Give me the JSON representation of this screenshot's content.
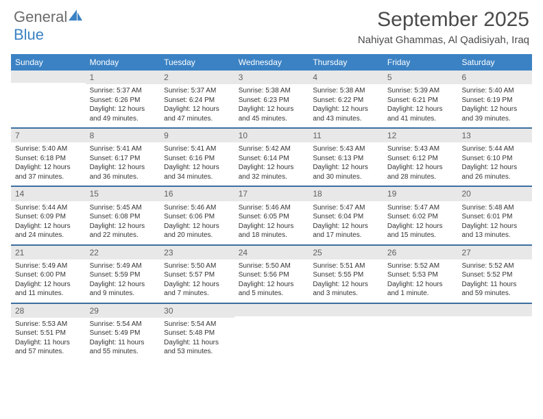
{
  "logo": {
    "main": "General",
    "sub": "Blue",
    "icon_color": "#3b82c4"
  },
  "header": {
    "title": "September 2025",
    "location": "Nahiyat Ghammas, Al Qadisiyah, Iraq"
  },
  "colors": {
    "header_bg": "#3b82c4",
    "row_divider": "#3b6ea0",
    "daynum_bg": "#e8e8e8",
    "text": "#333333",
    "header_text": "#ffffff"
  },
  "weekdays": [
    "Sunday",
    "Monday",
    "Tuesday",
    "Wednesday",
    "Thursday",
    "Friday",
    "Saturday"
  ],
  "weeks": [
    [
      {
        "blank": true
      },
      {
        "day": "1",
        "sunrise": "Sunrise: 5:37 AM",
        "sunset": "Sunset: 6:26 PM",
        "daylight1": "Daylight: 12 hours",
        "daylight2": "and 49 minutes."
      },
      {
        "day": "2",
        "sunrise": "Sunrise: 5:37 AM",
        "sunset": "Sunset: 6:24 PM",
        "daylight1": "Daylight: 12 hours",
        "daylight2": "and 47 minutes."
      },
      {
        "day": "3",
        "sunrise": "Sunrise: 5:38 AM",
        "sunset": "Sunset: 6:23 PM",
        "daylight1": "Daylight: 12 hours",
        "daylight2": "and 45 minutes."
      },
      {
        "day": "4",
        "sunrise": "Sunrise: 5:38 AM",
        "sunset": "Sunset: 6:22 PM",
        "daylight1": "Daylight: 12 hours",
        "daylight2": "and 43 minutes."
      },
      {
        "day": "5",
        "sunrise": "Sunrise: 5:39 AM",
        "sunset": "Sunset: 6:21 PM",
        "daylight1": "Daylight: 12 hours",
        "daylight2": "and 41 minutes."
      },
      {
        "day": "6",
        "sunrise": "Sunrise: 5:40 AM",
        "sunset": "Sunset: 6:19 PM",
        "daylight1": "Daylight: 12 hours",
        "daylight2": "and 39 minutes."
      }
    ],
    [
      {
        "day": "7",
        "sunrise": "Sunrise: 5:40 AM",
        "sunset": "Sunset: 6:18 PM",
        "daylight1": "Daylight: 12 hours",
        "daylight2": "and 37 minutes."
      },
      {
        "day": "8",
        "sunrise": "Sunrise: 5:41 AM",
        "sunset": "Sunset: 6:17 PM",
        "daylight1": "Daylight: 12 hours",
        "daylight2": "and 36 minutes."
      },
      {
        "day": "9",
        "sunrise": "Sunrise: 5:41 AM",
        "sunset": "Sunset: 6:16 PM",
        "daylight1": "Daylight: 12 hours",
        "daylight2": "and 34 minutes."
      },
      {
        "day": "10",
        "sunrise": "Sunrise: 5:42 AM",
        "sunset": "Sunset: 6:14 PM",
        "daylight1": "Daylight: 12 hours",
        "daylight2": "and 32 minutes."
      },
      {
        "day": "11",
        "sunrise": "Sunrise: 5:43 AM",
        "sunset": "Sunset: 6:13 PM",
        "daylight1": "Daylight: 12 hours",
        "daylight2": "and 30 minutes."
      },
      {
        "day": "12",
        "sunrise": "Sunrise: 5:43 AM",
        "sunset": "Sunset: 6:12 PM",
        "daylight1": "Daylight: 12 hours",
        "daylight2": "and 28 minutes."
      },
      {
        "day": "13",
        "sunrise": "Sunrise: 5:44 AM",
        "sunset": "Sunset: 6:10 PM",
        "daylight1": "Daylight: 12 hours",
        "daylight2": "and 26 minutes."
      }
    ],
    [
      {
        "day": "14",
        "sunrise": "Sunrise: 5:44 AM",
        "sunset": "Sunset: 6:09 PM",
        "daylight1": "Daylight: 12 hours",
        "daylight2": "and 24 minutes."
      },
      {
        "day": "15",
        "sunrise": "Sunrise: 5:45 AM",
        "sunset": "Sunset: 6:08 PM",
        "daylight1": "Daylight: 12 hours",
        "daylight2": "and 22 minutes."
      },
      {
        "day": "16",
        "sunrise": "Sunrise: 5:46 AM",
        "sunset": "Sunset: 6:06 PM",
        "daylight1": "Daylight: 12 hours",
        "daylight2": "and 20 minutes."
      },
      {
        "day": "17",
        "sunrise": "Sunrise: 5:46 AM",
        "sunset": "Sunset: 6:05 PM",
        "daylight1": "Daylight: 12 hours",
        "daylight2": "and 18 minutes."
      },
      {
        "day": "18",
        "sunrise": "Sunrise: 5:47 AM",
        "sunset": "Sunset: 6:04 PM",
        "daylight1": "Daylight: 12 hours",
        "daylight2": "and 17 minutes."
      },
      {
        "day": "19",
        "sunrise": "Sunrise: 5:47 AM",
        "sunset": "Sunset: 6:02 PM",
        "daylight1": "Daylight: 12 hours",
        "daylight2": "and 15 minutes."
      },
      {
        "day": "20",
        "sunrise": "Sunrise: 5:48 AM",
        "sunset": "Sunset: 6:01 PM",
        "daylight1": "Daylight: 12 hours",
        "daylight2": "and 13 minutes."
      }
    ],
    [
      {
        "day": "21",
        "sunrise": "Sunrise: 5:49 AM",
        "sunset": "Sunset: 6:00 PM",
        "daylight1": "Daylight: 12 hours",
        "daylight2": "and 11 minutes."
      },
      {
        "day": "22",
        "sunrise": "Sunrise: 5:49 AM",
        "sunset": "Sunset: 5:59 PM",
        "daylight1": "Daylight: 12 hours",
        "daylight2": "and 9 minutes."
      },
      {
        "day": "23",
        "sunrise": "Sunrise: 5:50 AM",
        "sunset": "Sunset: 5:57 PM",
        "daylight1": "Daylight: 12 hours",
        "daylight2": "and 7 minutes."
      },
      {
        "day": "24",
        "sunrise": "Sunrise: 5:50 AM",
        "sunset": "Sunset: 5:56 PM",
        "daylight1": "Daylight: 12 hours",
        "daylight2": "and 5 minutes."
      },
      {
        "day": "25",
        "sunrise": "Sunrise: 5:51 AM",
        "sunset": "Sunset: 5:55 PM",
        "daylight1": "Daylight: 12 hours",
        "daylight2": "and 3 minutes."
      },
      {
        "day": "26",
        "sunrise": "Sunrise: 5:52 AM",
        "sunset": "Sunset: 5:53 PM",
        "daylight1": "Daylight: 12 hours",
        "daylight2": "and 1 minute."
      },
      {
        "day": "27",
        "sunrise": "Sunrise: 5:52 AM",
        "sunset": "Sunset: 5:52 PM",
        "daylight1": "Daylight: 11 hours",
        "daylight2": "and 59 minutes."
      }
    ],
    [
      {
        "day": "28",
        "sunrise": "Sunrise: 5:53 AM",
        "sunset": "Sunset: 5:51 PM",
        "daylight1": "Daylight: 11 hours",
        "daylight2": "and 57 minutes."
      },
      {
        "day": "29",
        "sunrise": "Sunrise: 5:54 AM",
        "sunset": "Sunset: 5:49 PM",
        "daylight1": "Daylight: 11 hours",
        "daylight2": "and 55 minutes."
      },
      {
        "day": "30",
        "sunrise": "Sunrise: 5:54 AM",
        "sunset": "Sunset: 5:48 PM",
        "daylight1": "Daylight: 11 hours",
        "daylight2": "and 53 minutes."
      },
      {
        "blank": true
      },
      {
        "blank": true
      },
      {
        "blank": true
      },
      {
        "blank": true
      }
    ]
  ]
}
